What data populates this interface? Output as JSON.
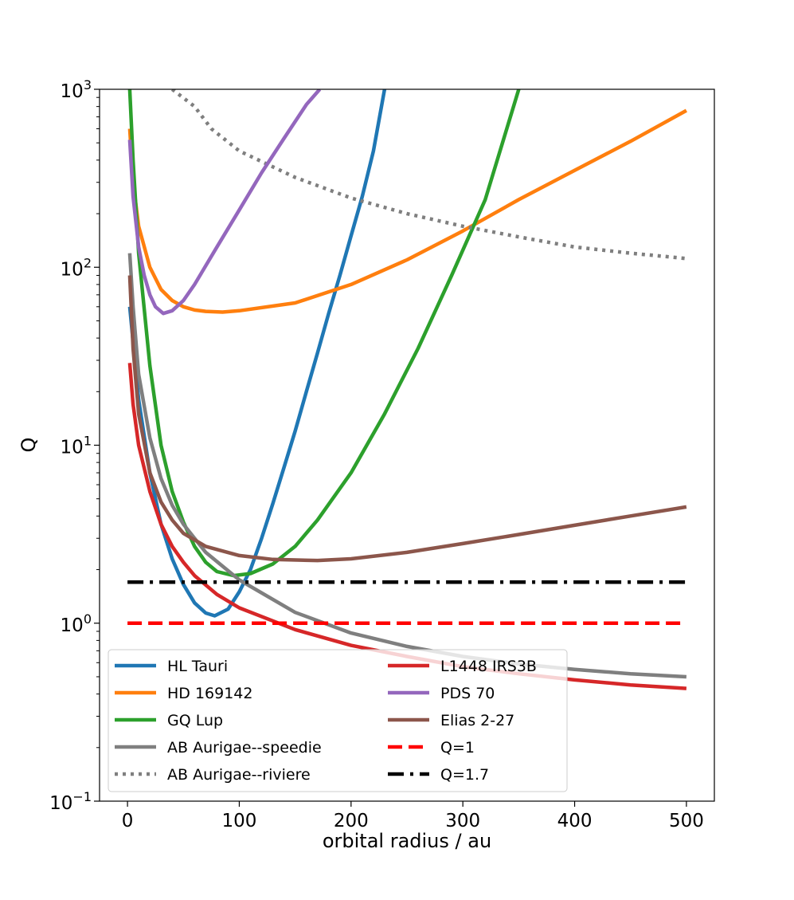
{
  "chart_data": {
    "type": "line",
    "title": "",
    "xlabel": "orbital radius / au",
    "ylabel": "Q",
    "xlim": [
      -25,
      525
    ],
    "ylim": [
      0.1,
      1000
    ],
    "yscale": "log",
    "grid": false,
    "x_ticks": [
      {
        "value": 0,
        "label": "0"
      },
      {
        "value": 100,
        "label": "100"
      },
      {
        "value": 200,
        "label": "200"
      },
      {
        "value": 300,
        "label": "300"
      },
      {
        "value": 400,
        "label": "400"
      },
      {
        "value": 500,
        "label": "500"
      }
    ],
    "y_ticks": [
      {
        "value": 0.1,
        "base": "10",
        "exp": "−1"
      },
      {
        "value": 1,
        "base": "10",
        "exp": "0"
      },
      {
        "value": 10,
        "base": "10",
        "exp": "1"
      },
      {
        "value": 100,
        "base": "10",
        "exp": "2"
      },
      {
        "value": 1000,
        "base": "10",
        "exp": "3"
      }
    ],
    "legend_position": "lower-left",
    "series": [
      {
        "name": "HL Tauri",
        "color": "#1f77b4",
        "style": "solid",
        "points": [
          [
            2,
            60
          ],
          [
            10,
            18
          ],
          [
            20,
            7
          ],
          [
            30,
            3.6
          ],
          [
            40,
            2.3
          ],
          [
            50,
            1.65
          ],
          [
            60,
            1.3
          ],
          [
            70,
            1.14
          ],
          [
            78,
            1.1
          ],
          [
            90,
            1.2
          ],
          [
            100,
            1.5
          ],
          [
            110,
            2.0
          ],
          [
            120,
            3.0
          ],
          [
            130,
            4.7
          ],
          [
            140,
            7.5
          ],
          [
            150,
            12
          ],
          [
            160,
            20
          ],
          [
            170,
            33
          ],
          [
            180,
            55
          ],
          [
            190,
            90
          ],
          [
            200,
            150
          ],
          [
            210,
            250
          ],
          [
            220,
            450
          ],
          [
            230,
            1000
          ]
        ]
      },
      {
        "name": "HD 169142",
        "color": "#ff7f0e",
        "style": "solid",
        "points": [
          [
            2,
            600
          ],
          [
            5,
            300
          ],
          [
            10,
            170
          ],
          [
            20,
            100
          ],
          [
            30,
            75
          ],
          [
            40,
            65
          ],
          [
            50,
            60
          ],
          [
            60,
            57.5
          ],
          [
            70,
            56.5
          ],
          [
            85,
            56
          ],
          [
            100,
            57
          ],
          [
            150,
            63
          ],
          [
            200,
            80
          ],
          [
            250,
            110
          ],
          [
            300,
            160
          ],
          [
            350,
            240
          ],
          [
            400,
            350
          ],
          [
            450,
            510
          ],
          [
            500,
            760
          ]
        ]
      },
      {
        "name": "GQ Lup",
        "color": "#2ca02c",
        "style": "solid",
        "points": [
          [
            2,
            1000
          ],
          [
            5,
            400
          ],
          [
            10,
            120
          ],
          [
            20,
            28
          ],
          [
            30,
            10
          ],
          [
            40,
            5.5
          ],
          [
            50,
            3.7
          ],
          [
            60,
            2.7
          ],
          [
            70,
            2.2
          ],
          [
            80,
            1.95
          ],
          [
            95,
            1.85
          ],
          [
            110,
            1.9
          ],
          [
            130,
            2.15
          ],
          [
            150,
            2.7
          ],
          [
            170,
            3.8
          ],
          [
            200,
            7
          ],
          [
            230,
            15
          ],
          [
            260,
            35
          ],
          [
            290,
            90
          ],
          [
            320,
            240
          ],
          [
            350,
            1000
          ]
        ]
      },
      {
        "name": "AB Aurigae--speedie",
        "color": "#7f7f7f",
        "style": "solid",
        "points": [
          [
            2,
            120
          ],
          [
            5,
            60
          ],
          [
            10,
            25
          ],
          [
            20,
            11
          ],
          [
            30,
            6.5
          ],
          [
            40,
            4.6
          ],
          [
            50,
            3.6
          ],
          [
            70,
            2.5
          ],
          [
            100,
            1.75
          ],
          [
            150,
            1.15
          ],
          [
            200,
            0.88
          ],
          [
            250,
            0.74
          ],
          [
            300,
            0.65
          ],
          [
            350,
            0.59
          ],
          [
            400,
            0.55
          ],
          [
            450,
            0.52
          ],
          [
            500,
            0.5
          ]
        ]
      },
      {
        "name": "AB Aurigae--riviere",
        "color": "#7f7f7f",
        "style": "dotted",
        "points": [
          [
            40,
            1000
          ],
          [
            60,
            800
          ],
          [
            75,
            600
          ],
          [
            100,
            450
          ],
          [
            150,
            320
          ],
          [
            200,
            245
          ],
          [
            250,
            200
          ],
          [
            300,
            170
          ],
          [
            350,
            148
          ],
          [
            400,
            130
          ],
          [
            450,
            120
          ],
          [
            500,
            112
          ]
        ]
      },
      {
        "name": "L1448 IRS3B",
        "color": "#d62728",
        "style": "solid",
        "points": [
          [
            2,
            29
          ],
          [
            5,
            17
          ],
          [
            10,
            10
          ],
          [
            20,
            5.5
          ],
          [
            30,
            3.6
          ],
          [
            40,
            2.7
          ],
          [
            50,
            2.2
          ],
          [
            60,
            1.85
          ],
          [
            80,
            1.45
          ],
          [
            100,
            1.22
          ],
          [
            150,
            0.92
          ],
          [
            200,
            0.75
          ],
          [
            250,
            0.65
          ],
          [
            300,
            0.57
          ],
          [
            350,
            0.52
          ],
          [
            400,
            0.48
          ],
          [
            450,
            0.45
          ],
          [
            500,
            0.43
          ]
        ]
      },
      {
        "name": "PDS 70",
        "color": "#9467bd",
        "style": "solid",
        "points": [
          [
            2,
            520
          ],
          [
            5,
            250
          ],
          [
            10,
            130
          ],
          [
            15,
            90
          ],
          [
            20,
            70
          ],
          [
            25,
            60
          ],
          [
            32,
            55
          ],
          [
            40,
            57
          ],
          [
            50,
            65
          ],
          [
            60,
            80
          ],
          [
            80,
            130
          ],
          [
            100,
            210
          ],
          [
            120,
            340
          ],
          [
            140,
            530
          ],
          [
            160,
            820
          ],
          [
            172,
            1000
          ]
        ]
      },
      {
        "name": "Elias 2-27",
        "color": "#8c564b",
        "style": "solid",
        "points": [
          [
            2,
            90
          ],
          [
            5,
            35
          ],
          [
            10,
            15
          ],
          [
            20,
            7
          ],
          [
            30,
            4.8
          ],
          [
            40,
            3.8
          ],
          [
            50,
            3.2
          ],
          [
            70,
            2.7
          ],
          [
            100,
            2.4
          ],
          [
            130,
            2.28
          ],
          [
            170,
            2.25
          ],
          [
            200,
            2.3
          ],
          [
            250,
            2.5
          ],
          [
            300,
            2.8
          ],
          [
            350,
            3.15
          ],
          [
            400,
            3.55
          ],
          [
            450,
            4.0
          ],
          [
            500,
            4.5
          ]
        ]
      },
      {
        "name": "Q=1",
        "color": "#ff0000",
        "style": "dashed",
        "points": [
          [
            0,
            1
          ],
          [
            500,
            1
          ]
        ]
      },
      {
        "name": "Q=1.7",
        "color": "#000000",
        "style": "dashdot",
        "points": [
          [
            0,
            1.7
          ],
          [
            500,
            1.7
          ]
        ]
      }
    ]
  }
}
